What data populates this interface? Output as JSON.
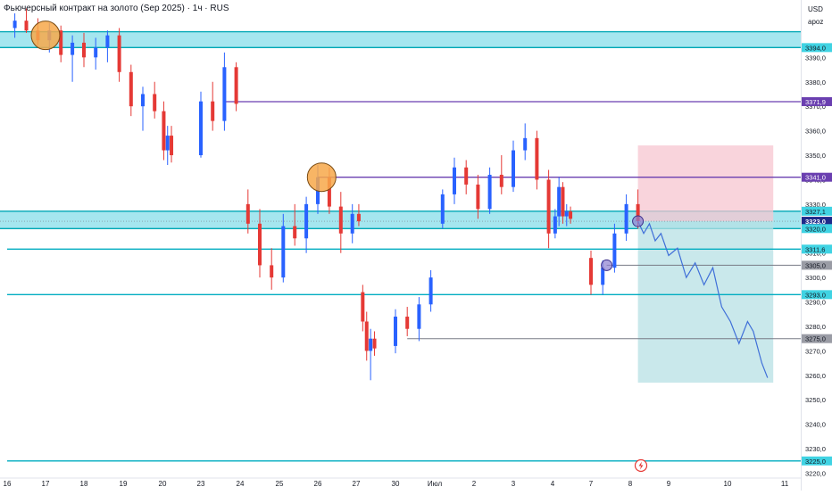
{
  "header": {
    "title": "Фьючерсный контракт на золото (Sep 2025) · 1ч · RUS"
  },
  "price_axis_head": {
    "currency": "USD",
    "mode": "apoz"
  },
  "colors": {
    "bull": "#2962ff",
    "bear": "#e53935",
    "zone_fill": "#7fdbe8",
    "zone_line": "#00a7b5",
    "level_purple": "#6a3fb0",
    "level_teal": "#00acc1",
    "level_gray": "#787b86",
    "stop_zone": "#f7c6d0",
    "target_zone": "#b7e0e4",
    "circle_orange": "#f7a84a",
    "projection": "#3f6fd8"
  },
  "chart_data": {
    "type": "candlestick",
    "title": "Фьючерсный контракт на золото (Sep 2025) · 1ч · RUS",
    "y_unit": "USD",
    "ylim": [
      3218,
      3412
    ],
    "y_ticks": [
      3220,
      3230,
      3240,
      3250,
      3260,
      3270,
      3280,
      3290,
      3300,
      3310,
      3320,
      3330,
      3340,
      3350,
      3360,
      3370,
      3380,
      3390
    ],
    "y_tick_labels": [
      "3220,0",
      "3230,0",
      "3240,0",
      "3250,0",
      "3260,0",
      "3270,0",
      "3280,0",
      "3290,0",
      "3300,0",
      "3310,0",
      "3320,0",
      "3330,0",
      "3340,0",
      "3350,0",
      "3360,0",
      "3370,0",
      "3380,0",
      "3390,0"
    ],
    "x_tick_labels": [
      "16",
      "17",
      "18",
      "19",
      "20",
      "23",
      "24",
      "25",
      "26",
      "27",
      "30",
      "Июл",
      "2",
      "3",
      "4",
      "7",
      "8",
      "9",
      "10",
      "11"
    ],
    "price_labels": [
      {
        "value": 3394.0,
        "text": "3394,0",
        "kind": "zone"
      },
      {
        "value": 3371.9,
        "text": "3371,9",
        "kind": "purple"
      },
      {
        "value": 3341.0,
        "text": "3341,0",
        "kind": "purple"
      },
      {
        "value": 3327.1,
        "text": "3327,1",
        "kind": "zone"
      },
      {
        "value": 3323.0,
        "text": "3323,0",
        "kind": "last"
      },
      {
        "value": 3320.0,
        "text": "3320,0",
        "kind": "zone"
      },
      {
        "value": 3311.6,
        "text": "3311,6",
        "kind": "teal"
      },
      {
        "value": 3305.0,
        "text": "3305,0",
        "kind": "gray"
      },
      {
        "value": 3293.0,
        "text": "3293,0",
        "kind": "teal"
      },
      {
        "value": 3275.0,
        "text": "3275,0",
        "kind": "gray"
      },
      {
        "value": 3225.0,
        "text": "3225,0",
        "kind": "teal"
      }
    ],
    "zones": [
      {
        "low": 3394.0,
        "high": 3400.5
      },
      {
        "low": 3320.0,
        "high": 3327.1
      }
    ],
    "levels": [
      {
        "value": 3371.9,
        "kind": "purple",
        "from_day": 23.6
      },
      {
        "value": 3341.0,
        "kind": "purple",
        "from_day": 26.0
      },
      {
        "value": 3311.6,
        "kind": "teal",
        "from_day": 16.0
      },
      {
        "value": 3305.0,
        "kind": "gray",
        "from_day": 7.4
      },
      {
        "value": 3293.0,
        "kind": "teal",
        "from_day": 16.0
      },
      {
        "value": 3275.0,
        "kind": "gray",
        "from_day": 30.3
      },
      {
        "value": 3225.0,
        "kind": "teal",
        "from_day": 16.0
      }
    ],
    "position": {
      "entry": 3323.0,
      "stop": 3354.0,
      "target": 3257.0,
      "from_day": 8.2,
      "to_day": 10.8
    },
    "markers": [
      {
        "day": 17.0,
        "price": 3399.0,
        "size": "large"
      },
      {
        "day": 26.1,
        "price": 3341.0,
        "size": "large"
      },
      {
        "day": 7.4,
        "price": 3305.0,
        "size": "small"
      },
      {
        "day": 8.2,
        "price": 3323.0,
        "size": "small"
      }
    ],
    "projection": [
      [
        8.2,
        3323
      ],
      [
        8.35,
        3318
      ],
      [
        8.5,
        3322
      ],
      [
        8.65,
        3315
      ],
      [
        8.8,
        3318
      ],
      [
        9.0,
        3309
      ],
      [
        9.15,
        3312
      ],
      [
        9.3,
        3300
      ],
      [
        9.45,
        3306
      ],
      [
        9.6,
        3297
      ],
      [
        9.75,
        3304
      ],
      [
        9.9,
        3288
      ],
      [
        10.05,
        3282
      ],
      [
        10.2,
        3273
      ],
      [
        10.35,
        3282
      ],
      [
        10.45,
        3278
      ],
      [
        10.6,
        3265
      ],
      [
        10.7,
        3259
      ]
    ],
    "candles": [
      {
        "day": 16.2,
        "o": 3402,
        "h": 3408,
        "l": 3398,
        "c": 3405
      },
      {
        "day": 16.5,
        "o": 3405,
        "h": 3410,
        "l": 3400,
        "c": 3401
      },
      {
        "day": 16.8,
        "o": 3401,
        "h": 3406,
        "l": 3395,
        "c": 3397
      },
      {
        "day": 17.1,
        "o": 3397,
        "h": 3404,
        "l": 3392,
        "c": 3401
      },
      {
        "day": 17.4,
        "o": 3401,
        "h": 3403,
        "l": 3388,
        "c": 3391
      },
      {
        "day": 17.7,
        "o": 3391,
        "h": 3399,
        "l": 3380,
        "c": 3396
      },
      {
        "day": 18.0,
        "o": 3396,
        "h": 3400,
        "l": 3386,
        "c": 3390
      },
      {
        "day": 18.3,
        "o": 3390,
        "h": 3398,
        "l": 3385,
        "c": 3394
      },
      {
        "day": 18.6,
        "o": 3394,
        "h": 3401,
        "l": 3388,
        "c": 3399
      },
      {
        "day": 18.9,
        "o": 3399,
        "h": 3402,
        "l": 3380,
        "c": 3384
      },
      {
        "day": 19.2,
        "o": 3384,
        "h": 3387,
        "l": 3366,
        "c": 3370
      },
      {
        "day": 19.5,
        "o": 3370,
        "h": 3378,
        "l": 3360,
        "c": 3375
      },
      {
        "day": 19.8,
        "o": 3375,
        "h": 3380,
        "l": 3365,
        "c": 3368
      },
      {
        "day": 20.1,
        "o": 3368,
        "h": 3372,
        "l": 3348,
        "c": 3352
      },
      {
        "day": 20.4,
        "o": 3352,
        "h": 3362,
        "l": 3346,
        "c": 3358
      },
      {
        "day": 20.7,
        "o": 3358,
        "h": 3362,
        "l": 3347,
        "c": 3350
      },
      {
        "day": 23.0,
        "o": 3350,
        "h": 3376,
        "l": 3349,
        "c": 3372
      },
      {
        "day": 23.3,
        "o": 3372,
        "h": 3380,
        "l": 3360,
        "c": 3364
      },
      {
        "day": 23.6,
        "o": 3364,
        "h": 3392,
        "l": 3360,
        "c": 3386
      },
      {
        "day": 23.9,
        "o": 3386,
        "h": 3388,
        "l": 3368,
        "c": 3371
      },
      {
        "day": 24.2,
        "o": 3330,
        "h": 3336,
        "l": 3318,
        "c": 3322
      },
      {
        "day": 24.5,
        "o": 3322,
        "h": 3328,
        "l": 3300,
        "c": 3305
      },
      {
        "day": 24.8,
        "o": 3305,
        "h": 3312,
        "l": 3295,
        "c": 3300
      },
      {
        "day": 25.1,
        "o": 3300,
        "h": 3326,
        "l": 3298,
        "c": 3321
      },
      {
        "day": 25.4,
        "o": 3321,
        "h": 3330,
        "l": 3313,
        "c": 3316
      },
      {
        "day": 25.7,
        "o": 3316,
        "h": 3333,
        "l": 3310,
        "c": 3330
      },
      {
        "day": 26.0,
        "o": 3330,
        "h": 3346,
        "l": 3326,
        "c": 3341
      },
      {
        "day": 26.3,
        "o": 3341,
        "h": 3345,
        "l": 3326,
        "c": 3329
      },
      {
        "day": 26.6,
        "o": 3329,
        "h": 3335,
        "l": 3310,
        "c": 3318
      },
      {
        "day": 26.9,
        "o": 3318,
        "h": 3330,
        "l": 3314,
        "c": 3326
      },
      {
        "day": 27.2,
        "o": 3326,
        "h": 3330,
        "l": 3321,
        "c": 3323
      },
      {
        "day": 27.5,
        "o": 3294,
        "h": 3297,
        "l": 3278,
        "c": 3282
      },
      {
        "day": 27.8,
        "o": 3282,
        "h": 3286,
        "l": 3266,
        "c": 3270
      },
      {
        "day": 28.1,
        "o": 3270,
        "h": 3279,
        "l": 3258,
        "c": 3275
      },
      {
        "day": 28.4,
        "o": 3275,
        "h": 3278,
        "l": 3268,
        "c": 3271
      },
      {
        "day": 30.0,
        "o": 3272,
        "h": 3287,
        "l": 3269,
        "c": 3284
      },
      {
        "day": 30.3,
        "o": 3284,
        "h": 3288,
        "l": 3276,
        "c": 3279
      },
      {
        "day": 30.6,
        "o": 3279,
        "h": 3292,
        "l": 3274,
        "c": 3289
      },
      {
        "day": 30.9,
        "o": 3289,
        "h": 3303,
        "l": 3286,
        "c": 3300
      },
      {
        "day": 31.2,
        "o": 3322,
        "h": 3336,
        "l": 3320,
        "c": 3334
      },
      {
        "day": 31.5,
        "o": 3334,
        "h": 3349,
        "l": 3330,
        "c": 3345
      },
      {
        "day": 31.8,
        "o": 3345,
        "h": 3348,
        "l": 3334,
        "c": 3338
      },
      {
        "day": 32.1,
        "o": 3338,
        "h": 3342,
        "l": 3324,
        "c": 3328
      },
      {
        "day": 32.4,
        "o": 3328,
        "h": 3345,
        "l": 3326,
        "c": 3342
      },
      {
        "day": 32.7,
        "o": 3342,
        "h": 3350,
        "l": 3334,
        "c": 3337
      },
      {
        "day": 33.0,
        "o": 3337,
        "h": 3356,
        "l": 3335,
        "c": 3352
      },
      {
        "day": 33.3,
        "o": 3352,
        "h": 3363,
        "l": 3348,
        "c": 3357
      },
      {
        "day": 33.6,
        "o": 3357,
        "h": 3360,
        "l": 3336,
        "c": 3340
      },
      {
        "day": 33.9,
        "o": 3340,
        "h": 3344,
        "l": 3312,
        "c": 3318
      },
      {
        "day": 34.2,
        "o": 3318,
        "h": 3328,
        "l": 3316,
        "c": 3325
      },
      {
        "day": 34.5,
        "o": 3325,
        "h": 3341,
        "l": 3321,
        "c": 3337
      },
      {
        "day": 34.8,
        "o": 3337,
        "h": 3339,
        "l": 3322,
        "c": 3325
      },
      {
        "day": 35.1,
        "o": 3325,
        "h": 3330,
        "l": 3321,
        "c": 3327
      },
      {
        "day": 35.4,
        "o": 3327,
        "h": 3329,
        "l": 3322,
        "c": 3324
      },
      {
        "day": 37.0,
        "o": 3308,
        "h": 3311,
        "l": 3293,
        "c": 3297
      },
      {
        "day": 37.3,
        "o": 3297,
        "h": 3307,
        "l": 3293,
        "c": 3304
      },
      {
        "day": 37.6,
        "o": 3304,
        "h": 3322,
        "l": 3302,
        "c": 3318
      },
      {
        "day": 37.9,
        "o": 3318,
        "h": 3334,
        "l": 3315,
        "c": 3330
      },
      {
        "day": 38.2,
        "o": 3330,
        "h": 3336,
        "l": 3320,
        "c": 3323
      }
    ]
  }
}
